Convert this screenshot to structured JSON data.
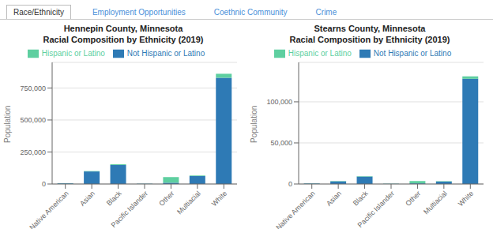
{
  "annotations": [
    "Race/Ethnicity",
    "Employment Opportunities",
    "Coethnic Community",
    "Crime"
  ],
  "chart_data": [
    {
      "type": "bar",
      "stacked": true,
      "grid": true,
      "legend": "top",
      "title": "Hennepin County, Minnesota",
      "subtitle": "Racial Composition by Ethnicity (2019)",
      "y_label": "Population",
      "categories": [
        "Native American",
        "Asian",
        "Black",
        "Pacific Islander",
        "Other",
        "Multiacial",
        "White"
      ],
      "series": [
        {
          "name": "Not Hispanic or Latino",
          "color": "#2e7ab5",
          "values": [
            5000,
            98000,
            148000,
            1800,
            10000,
            62000,
            830000
          ]
        },
        {
          "name": "Hispanic or Latino",
          "color": "#5ecfa0",
          "values": [
            1200,
            3000,
            6000,
            800,
            44000,
            5000,
            31000
          ]
        }
      ],
      "ylim": [
        0,
        950000
      ],
      "yticks": [
        0,
        {
          "value": 250000,
          "label": "250,000"
        },
        {
          "value": 500000,
          "label": "500,000"
        },
        {
          "value": 750000,
          "label": "750,000"
        }
      ]
    },
    {
      "type": "bar",
      "stacked": true,
      "grid": true,
      "legend": "top",
      "title": "Stearns County, Minnesota",
      "subtitle": "Racial Composition by Ethnicity (2019)",
      "y_label": "Population",
      "categories": [
        "Native American",
        "Asian",
        "Black",
        "Pacific Islander",
        "Other",
        "Multiacial",
        "White"
      ],
      "series": [
        {
          "name": "Not Hispanic or Latino",
          "color": "#2e7ab5",
          "values": [
            600,
            3200,
            9000,
            200,
            800,
            2800,
            128000
          ]
        },
        {
          "name": "Hispanic or Latino",
          "color": "#5ecfa0",
          "values": [
            200,
            400,
            500,
            200,
            2800,
            500,
            3000
          ]
        }
      ],
      "ylim": [
        0,
        148000
      ],
      "yticks": [
        0,
        {
          "value": 50000,
          "label": "50,000"
        },
        {
          "value": 100000,
          "label": "100,000"
        }
      ]
    }
  ]
}
